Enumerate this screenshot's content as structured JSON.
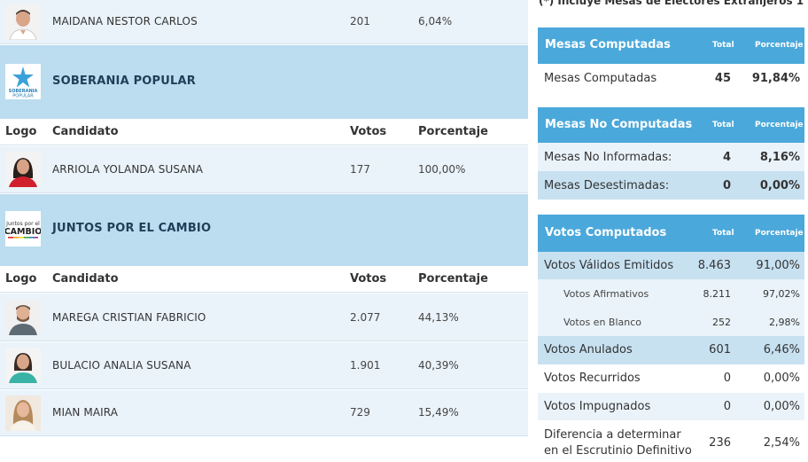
{
  "left": {
    "top_candidate": {
      "name": "MAIDANA NESTOR CARLOS",
      "votes": "201",
      "pct": "6,04%"
    },
    "parties": [
      {
        "name": "SOBERANIA POPULAR",
        "logo_text": "SOBERANIA\nPOPULAR",
        "headers": {
          "logo": "Logo",
          "candidate": "Candidato",
          "votes": "Votos",
          "pct": "Porcentaje"
        },
        "candidates": [
          {
            "name": "ARRIOLA YOLANDA SUSANA",
            "votes": "177",
            "pct": "100,00%"
          }
        ]
      },
      {
        "name": "JUNTOS POR EL CAMBIO",
        "logo_text_top": "Juntos por el",
        "logo_text_main": "CAMBIO",
        "headers": {
          "logo": "Logo",
          "candidate": "Candidato",
          "votes": "Votos",
          "pct": "Porcentaje"
        },
        "candidates": [
          {
            "name": "MAREGA CRISTIAN FABRICIO",
            "votes": "2.077",
            "pct": "44,13%"
          },
          {
            "name": "BULACIO ANALIA SUSANA",
            "votes": "1.901",
            "pct": "40,39%"
          },
          {
            "name": "MIAN MAIRA",
            "votes": "729",
            "pct": "15,49%"
          }
        ]
      }
    ]
  },
  "right": {
    "note": "(*) Incluye Mesas de Electores Extranjeros 1",
    "mesas_computadas": {
      "title": "Mesas Computadas",
      "col_total": "Total",
      "col_pct": "Porcentaje",
      "rows": [
        {
          "label": "Mesas Computadas",
          "total": "45",
          "pct": "91,84%"
        }
      ]
    },
    "mesas_no_computadas": {
      "title": "Mesas No Computadas",
      "col_total": "Total",
      "col_pct": "Porcentaje",
      "rows": [
        {
          "label": "Mesas No Informadas:",
          "total": "4",
          "pct": "8,16%"
        },
        {
          "label": "Mesas Desestimadas:",
          "total": "0",
          "pct": "0,00%"
        }
      ]
    },
    "votos_computados": {
      "title": "Votos Computados",
      "col_total": "Total",
      "col_pct": "Porcentaje",
      "rows": [
        {
          "label": "Votos Válidos Emitidos",
          "total": "8.463",
          "pct": "91,00%"
        },
        {
          "label": "Votos Afirmativos",
          "total": "8.211",
          "pct": "97,02%"
        },
        {
          "label": "Votos en Blanco",
          "total": "252",
          "pct": "2,98%"
        },
        {
          "label": "Votos Anulados",
          "total": "601",
          "pct": "6,46%"
        },
        {
          "label": "Votos Recurridos",
          "total": "0",
          "pct": "0,00%"
        },
        {
          "label": "Votos Impugnados",
          "total": "0",
          "pct": "0,00%"
        },
        {
          "label_line1": "Diferencia a determinar",
          "label_line2": "en el Escrutinio Definitivo",
          "total": "236",
          "pct": "2,54%"
        }
      ]
    }
  },
  "colors": {
    "party_band": "#bcdcef",
    "row_bg": "#eaf3fa",
    "header_blue": "#4aa8db",
    "highlight_row": "#c7e1f1"
  }
}
